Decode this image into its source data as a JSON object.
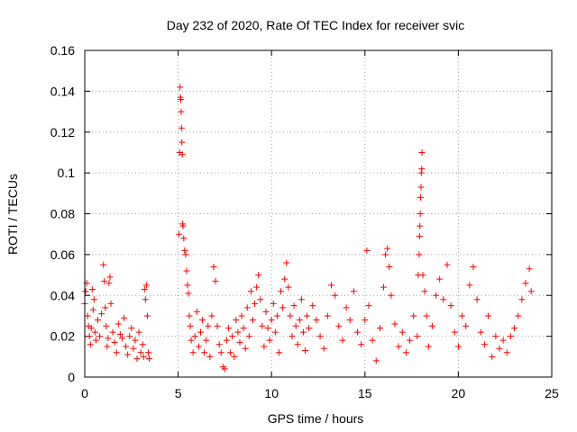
{
  "chart_data": {
    "type": "scatter",
    "title": "Day 232 of 2020, Rate Of TEC Index for receiver svic",
    "xlabel": "GPS time / hours",
    "ylabel": "ROTI / TECUs",
    "xlim": [
      0,
      25
    ],
    "ylim": [
      0,
      0.16
    ],
    "x_ticks": [
      "0",
      "5",
      "10",
      "15",
      "20",
      "25"
    ],
    "y_ticks": [
      "0",
      "0.02",
      "0.04",
      "0.06",
      "0.08",
      "0.1",
      "0.12",
      "0.14",
      "0.16"
    ],
    "grid": true,
    "marker": "+",
    "color": "#ff0000",
    "series": [
      {
        "points": [
          [
            0.0,
            0.036
          ],
          [
            0.05,
            0.042
          ],
          [
            0.1,
            0.046
          ],
          [
            0.15,
            0.03
          ],
          [
            0.2,
            0.025
          ],
          [
            0.25,
            0.02
          ],
          [
            0.3,
            0.016
          ],
          [
            0.35,
            0.024
          ],
          [
            0.4,
            0.043
          ],
          [
            0.45,
            0.033
          ],
          [
            0.5,
            0.038
          ],
          [
            0.55,
            0.022
          ],
          [
            0.6,
            0.018
          ],
          [
            0.7,
            0.028
          ],
          [
            0.8,
            0.02
          ],
          [
            0.9,
            0.031
          ],
          [
            1.0,
            0.055
          ],
          [
            1.05,
            0.047
          ],
          [
            1.1,
            0.034
          ],
          [
            1.15,
            0.025
          ],
          [
            1.2,
            0.015
          ],
          [
            1.25,
            0.019
          ],
          [
            1.3,
            0.046
          ],
          [
            1.35,
            0.049
          ],
          [
            1.4,
            0.036
          ],
          [
            1.5,
            0.022
          ],
          [
            1.6,
            0.017
          ],
          [
            1.7,
            0.012
          ],
          [
            1.8,
            0.026
          ],
          [
            1.9,
            0.021
          ],
          [
            2.0,
            0.019
          ],
          [
            2.1,
            0.029
          ],
          [
            2.2,
            0.015
          ],
          [
            2.3,
            0.011
          ],
          [
            2.4,
            0.02
          ],
          [
            2.5,
            0.024
          ],
          [
            2.6,
            0.014
          ],
          [
            2.7,
            0.018
          ],
          [
            2.8,
            0.009
          ],
          [
            2.9,
            0.022
          ],
          [
            3.0,
            0.012
          ],
          [
            3.1,
            0.016
          ],
          [
            3.15,
            0.01
          ],
          [
            3.2,
            0.043
          ],
          [
            3.25,
            0.038
          ],
          [
            3.3,
            0.045
          ],
          [
            3.35,
            0.03
          ],
          [
            3.4,
            0.012
          ],
          [
            3.45,
            0.009
          ],
          [
            5.05,
            0.07
          ],
          [
            5.08,
            0.11
          ],
          [
            5.1,
            0.142
          ],
          [
            5.12,
            0.137
          ],
          [
            5.14,
            0.136
          ],
          [
            5.16,
            0.13
          ],
          [
            5.18,
            0.122
          ],
          [
            5.2,
            0.115
          ],
          [
            5.22,
            0.109
          ],
          [
            5.24,
            0.075
          ],
          [
            5.26,
            0.074
          ],
          [
            5.3,
            0.068
          ],
          [
            5.35,
            0.062
          ],
          [
            5.4,
            0.06
          ],
          [
            5.45,
            0.052
          ],
          [
            5.5,
            0.045
          ],
          [
            5.55,
            0.041
          ],
          [
            5.6,
            0.03
          ],
          [
            5.65,
            0.025
          ],
          [
            5.7,
            0.018
          ],
          [
            5.8,
            0.012
          ],
          [
            5.9,
            0.02
          ],
          [
            6.0,
            0.032
          ],
          [
            6.1,
            0.015
          ],
          [
            6.2,
            0.022
          ],
          [
            6.3,
            0.028
          ],
          [
            6.4,
            0.012
          ],
          [
            6.5,
            0.018
          ],
          [
            6.6,
            0.025
          ],
          [
            6.7,
            0.01
          ],
          [
            6.8,
            0.03
          ],
          [
            6.9,
            0.054
          ],
          [
            7.0,
            0.047
          ],
          [
            7.1,
            0.025
          ],
          [
            7.2,
            0.016
          ],
          [
            7.3,
            0.012
          ],
          [
            7.4,
            0.005
          ],
          [
            7.5,
            0.004
          ],
          [
            7.6,
            0.018
          ],
          [
            7.7,
            0.024
          ],
          [
            7.8,
            0.012
          ],
          [
            7.9,
            0.02
          ],
          [
            8.0,
            0.01
          ],
          [
            8.1,
            0.028
          ],
          [
            8.2,
            0.022
          ],
          [
            8.3,
            0.017
          ],
          [
            8.4,
            0.03
          ],
          [
            8.5,
            0.024
          ],
          [
            8.6,
            0.014
          ],
          [
            8.7,
            0.034
          ],
          [
            8.8,
            0.02
          ],
          [
            8.9,
            0.042
          ],
          [
            9.0,
            0.028
          ],
          [
            9.1,
            0.036
          ],
          [
            9.2,
            0.044
          ],
          [
            9.3,
            0.05
          ],
          [
            9.4,
            0.038
          ],
          [
            9.5,
            0.025
          ],
          [
            9.6,
            0.015
          ],
          [
            9.7,
            0.032
          ],
          [
            9.8,
            0.024
          ],
          [
            9.9,
            0.018
          ],
          [
            10.0,
            0.028
          ],
          [
            10.1,
            0.036
          ],
          [
            10.2,
            0.022
          ],
          [
            10.3,
            0.03
          ],
          [
            10.4,
            0.012
          ],
          [
            10.5,
            0.042
          ],
          [
            10.6,
            0.034
          ],
          [
            10.7,
            0.048
          ],
          [
            10.8,
            0.056
          ],
          [
            10.9,
            0.044
          ],
          [
            11.0,
            0.03
          ],
          [
            11.1,
            0.02
          ],
          [
            11.2,
            0.035
          ],
          [
            11.3,
            0.025
          ],
          [
            11.4,
            0.016
          ],
          [
            11.5,
            0.028
          ],
          [
            11.6,
            0.038
          ],
          [
            11.7,
            0.022
          ],
          [
            11.8,
            0.013
          ],
          [
            11.9,
            0.03
          ],
          [
            12.0,
            0.024
          ],
          [
            12.2,
            0.035
          ],
          [
            12.4,
            0.028
          ],
          [
            12.6,
            0.02
          ],
          [
            12.8,
            0.014
          ],
          [
            13.0,
            0.03
          ],
          [
            13.2,
            0.045
          ],
          [
            13.4,
            0.04
          ],
          [
            13.6,
            0.025
          ],
          [
            13.8,
            0.018
          ],
          [
            14.0,
            0.034
          ],
          [
            14.2,
            0.028
          ],
          [
            14.4,
            0.042
          ],
          [
            14.6,
            0.022
          ],
          [
            14.8,
            0.016
          ],
          [
            15.0,
            0.028
          ],
          [
            15.1,
            0.062
          ],
          [
            15.2,
            0.035
          ],
          [
            15.4,
            0.018
          ],
          [
            15.6,
            0.008
          ],
          [
            15.8,
            0.024
          ],
          [
            16.0,
            0.044
          ],
          [
            16.1,
            0.06
          ],
          [
            16.2,
            0.063
          ],
          [
            16.3,
            0.054
          ],
          [
            16.4,
            0.04
          ],
          [
            16.6,
            0.026
          ],
          [
            16.8,
            0.015
          ],
          [
            17.0,
            0.022
          ],
          [
            17.2,
            0.012
          ],
          [
            17.4,
            0.018
          ],
          [
            17.6,
            0.03
          ],
          [
            17.8,
            0.02
          ],
          [
            17.85,
            0.05
          ],
          [
            17.9,
            0.06
          ],
          [
            17.92,
            0.069
          ],
          [
            17.94,
            0.074
          ],
          [
            17.96,
            0.08
          ],
          [
            17.98,
            0.088
          ],
          [
            18.0,
            0.093
          ],
          [
            18.02,
            0.1
          ],
          [
            18.04,
            0.102
          ],
          [
            18.05,
            0.11
          ],
          [
            18.1,
            0.05
          ],
          [
            18.2,
            0.042
          ],
          [
            18.3,
            0.03
          ],
          [
            18.4,
            0.015
          ],
          [
            18.6,
            0.025
          ],
          [
            18.8,
            0.04
          ],
          [
            19.0,
            0.048
          ],
          [
            19.2,
            0.038
          ],
          [
            19.4,
            0.055
          ],
          [
            19.6,
            0.035
          ],
          [
            19.8,
            0.022
          ],
          [
            20.0,
            0.015
          ],
          [
            20.2,
            0.03
          ],
          [
            20.4,
            0.025
          ],
          [
            20.6,
            0.045
          ],
          [
            20.8,
            0.054
          ],
          [
            21.0,
            0.038
          ],
          [
            21.2,
            0.022
          ],
          [
            21.4,
            0.016
          ],
          [
            21.6,
            0.03
          ],
          [
            21.8,
            0.01
          ],
          [
            22.0,
            0.02
          ],
          [
            22.2,
            0.014
          ],
          [
            22.4,
            0.018
          ],
          [
            22.6,
            0.012
          ],
          [
            22.8,
            0.02
          ],
          [
            23.0,
            0.024
          ],
          [
            23.2,
            0.03
          ],
          [
            23.4,
            0.038
          ],
          [
            23.6,
            0.046
          ],
          [
            23.8,
            0.053
          ],
          [
            23.9,
            0.042
          ]
        ]
      }
    ]
  }
}
